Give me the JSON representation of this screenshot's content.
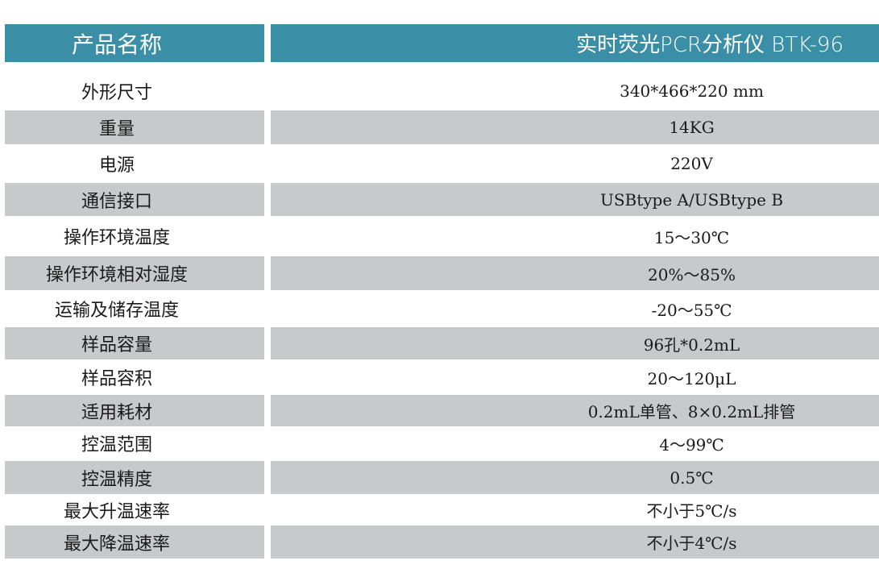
{
  "header": {
    "label": "产品名称",
    "value": "实时荧光PCR分析仪 BTK-96",
    "color": "#3a8ea6"
  },
  "rows": [
    {
      "label": "外形尺寸",
      "value": "340*466*220 mm"
    },
    {
      "label": "重量",
      "value": "14KG"
    },
    {
      "label": "电源",
      "value": "220V"
    },
    {
      "label": "通信接口",
      "value": "USBtype A/USBtype B"
    },
    {
      "label": "操作环境温度",
      "value": "15～30℃"
    },
    {
      "label": "操作环境相对湿度",
      "value": "20%～85%"
    },
    {
      "label": "运输及储存温度",
      "value": "-20～55℃"
    },
    {
      "label": "样品容量",
      "value": "96孔*0.2mL"
    },
    {
      "label": "样品容积",
      "value": "20～120μL"
    },
    {
      "label": "适用耗材",
      "value": "0.2mL单管、8×0.2mL排管"
    },
    {
      "label": "控温范围",
      "value": "4～99℃"
    },
    {
      "label": "控温精度",
      "value": "0.5℃"
    },
    {
      "label": "最大升温速率",
      "value": "不小于5℃/s"
    },
    {
      "label": "最大降温速率",
      "value": "不小于4℃/s"
    }
  ]
}
